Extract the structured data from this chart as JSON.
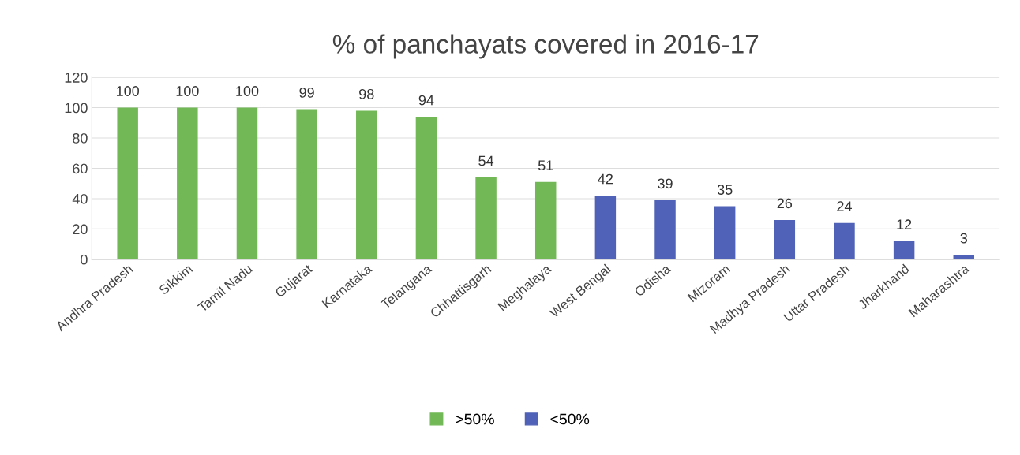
{
  "chart_data": {
    "type": "bar",
    "title": "% of panchayats covered in 2016-17",
    "categories": [
      "Andhra Pradesh",
      "Sikkim",
      "Tamil Nadu",
      "Gujarat",
      "Karnataka",
      "Telangana",
      "Chhattisgarh",
      "Meghalaya",
      "West Bengal",
      "Odisha",
      "Mizoram",
      "Madhya Pradesh",
      "Uttar Pradesh",
      "Jharkhand",
      "Maharashtra"
    ],
    "series": [
      {
        "name": ">50%",
        "color": "#72b857",
        "values": [
          100,
          100,
          100,
          99,
          98,
          94,
          54,
          51,
          null,
          null,
          null,
          null,
          null,
          null,
          null
        ]
      },
      {
        "name": "<50%",
        "color": "#4f62b8",
        "values": [
          null,
          null,
          null,
          null,
          null,
          null,
          null,
          null,
          42,
          39,
          35,
          26,
          24,
          12,
          3
        ]
      }
    ],
    "ylim": [
      0,
      120
    ],
    "yticks": [
      0,
      20,
      40,
      60,
      80,
      100,
      120
    ],
    "grid": "y",
    "legend": "bottom",
    "data_labels": true
  }
}
